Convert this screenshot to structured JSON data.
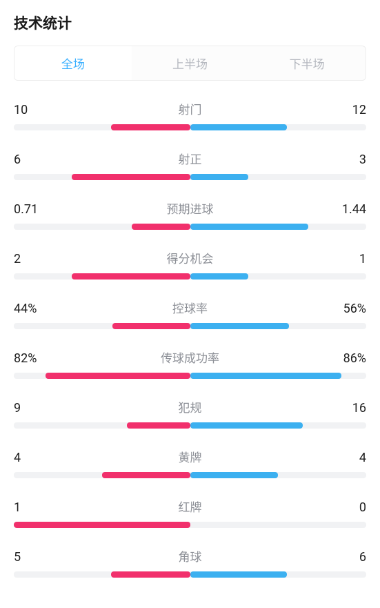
{
  "title": "技术统计",
  "colors": {
    "left": "#f1306c",
    "right": "#3cb0f0",
    "track": "#f1f2f4",
    "active_tab": "#3bb0ff",
    "inactive_tab": "#b5b8bf",
    "label": "#8c8f96",
    "value": "#222222"
  },
  "tabs": [
    {
      "label": "全场",
      "active": true
    },
    {
      "label": "上半场",
      "active": false
    },
    {
      "label": "下半场",
      "active": false
    }
  ],
  "stats": [
    {
      "label": "射门",
      "left_display": "10",
      "right_display": "12",
      "left_pct": 45,
      "right_pct": 55
    },
    {
      "label": "射正",
      "left_display": "6",
      "right_display": "3",
      "left_pct": 67,
      "right_pct": 33
    },
    {
      "label": "预期进球",
      "left_display": "0.71",
      "right_display": "1.44",
      "left_pct": 33,
      "right_pct": 67
    },
    {
      "label": "得分机会",
      "left_display": "2",
      "right_display": "1",
      "left_pct": 67,
      "right_pct": 33
    },
    {
      "label": "控球率",
      "left_display": "44%",
      "right_display": "56%",
      "left_pct": 44,
      "right_pct": 56
    },
    {
      "label": "传球成功率",
      "left_display": "82%",
      "right_display": "86%",
      "left_pct": 82,
      "right_pct": 86
    },
    {
      "label": "犯规",
      "left_display": "9",
      "right_display": "16",
      "left_pct": 36,
      "right_pct": 64
    },
    {
      "label": "黄牌",
      "left_display": "4",
      "right_display": "4",
      "left_pct": 50,
      "right_pct": 50
    },
    {
      "label": "红牌",
      "left_display": "1",
      "right_display": "0",
      "left_pct": 100,
      "right_pct": 0
    },
    {
      "label": "角球",
      "left_display": "5",
      "right_display": "6",
      "left_pct": 45,
      "right_pct": 55
    }
  ]
}
